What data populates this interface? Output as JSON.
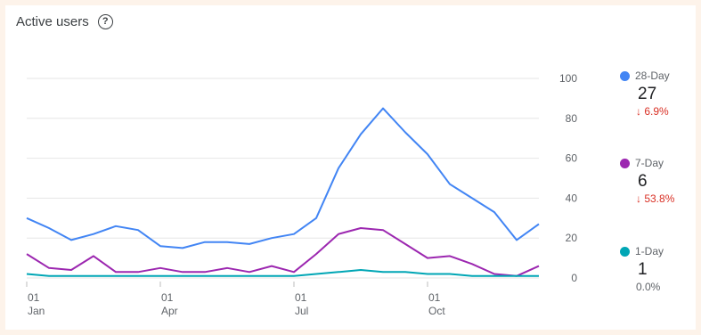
{
  "header": {
    "title": "Active users",
    "help_icon": "help-circle-icon"
  },
  "colors": {
    "28-Day": "#4285f4",
    "7-Day": "#9c27b0",
    "1-Day": "#00a6b5",
    "negative": "#d93025",
    "grid": "#e6e6e6"
  },
  "legend": [
    {
      "label": "28-Day",
      "value": "27",
      "change": "↓ 6.9%",
      "direction": "down"
    },
    {
      "label": "7-Day",
      "value": "6",
      "change": "↓ 53.8%",
      "direction": "down"
    },
    {
      "label": "1-Day",
      "value": "1",
      "change": "0.0%",
      "direction": "flat"
    }
  ],
  "chart_data": {
    "type": "line",
    "y_ticks": [
      "0",
      "20",
      "40",
      "60",
      "80",
      "100"
    ],
    "ylim": [
      0,
      100
    ],
    "y_axis_position": "right",
    "grid": true,
    "x_ticks": [
      {
        "day": "01",
        "month": "Jan"
      },
      {
        "day": "01",
        "month": "Apr"
      },
      {
        "day": "01",
        "month": "Jul"
      },
      {
        "day": "01",
        "month": "Oct"
      }
    ],
    "x": [
      "Jan 01",
      "Jan 15",
      "Feb 01",
      "Feb 15",
      "Mar 01",
      "Mar 15",
      "Apr 01",
      "Apr 15",
      "May 01",
      "May 15",
      "Jun 01",
      "Jun 15",
      "Jul 01",
      "Jul 15",
      "Aug 01",
      "Aug 15",
      "Sep 01",
      "Sep 15",
      "Oct 01",
      "Oct 15",
      "Nov 01",
      "Nov 15",
      "Dec 01",
      "Dec 15"
    ],
    "series": [
      {
        "name": "28-Day",
        "values": [
          30,
          25,
          19,
          22,
          26,
          24,
          16,
          15,
          18,
          18,
          17,
          20,
          22,
          30,
          55,
          72,
          85,
          73,
          62,
          47,
          40,
          33,
          19,
          27
        ]
      },
      {
        "name": "7-Day",
        "values": [
          12,
          5,
          4,
          11,
          3,
          3,
          5,
          3,
          3,
          5,
          3,
          6,
          3,
          12,
          22,
          25,
          24,
          17,
          10,
          11,
          7,
          2,
          1,
          6
        ]
      },
      {
        "name": "1-Day",
        "values": [
          2,
          1,
          1,
          1,
          1,
          1,
          1,
          1,
          1,
          1,
          1,
          1,
          1,
          2,
          3,
          4,
          3,
          3,
          2,
          2,
          1,
          1,
          1,
          1
        ]
      }
    ]
  }
}
